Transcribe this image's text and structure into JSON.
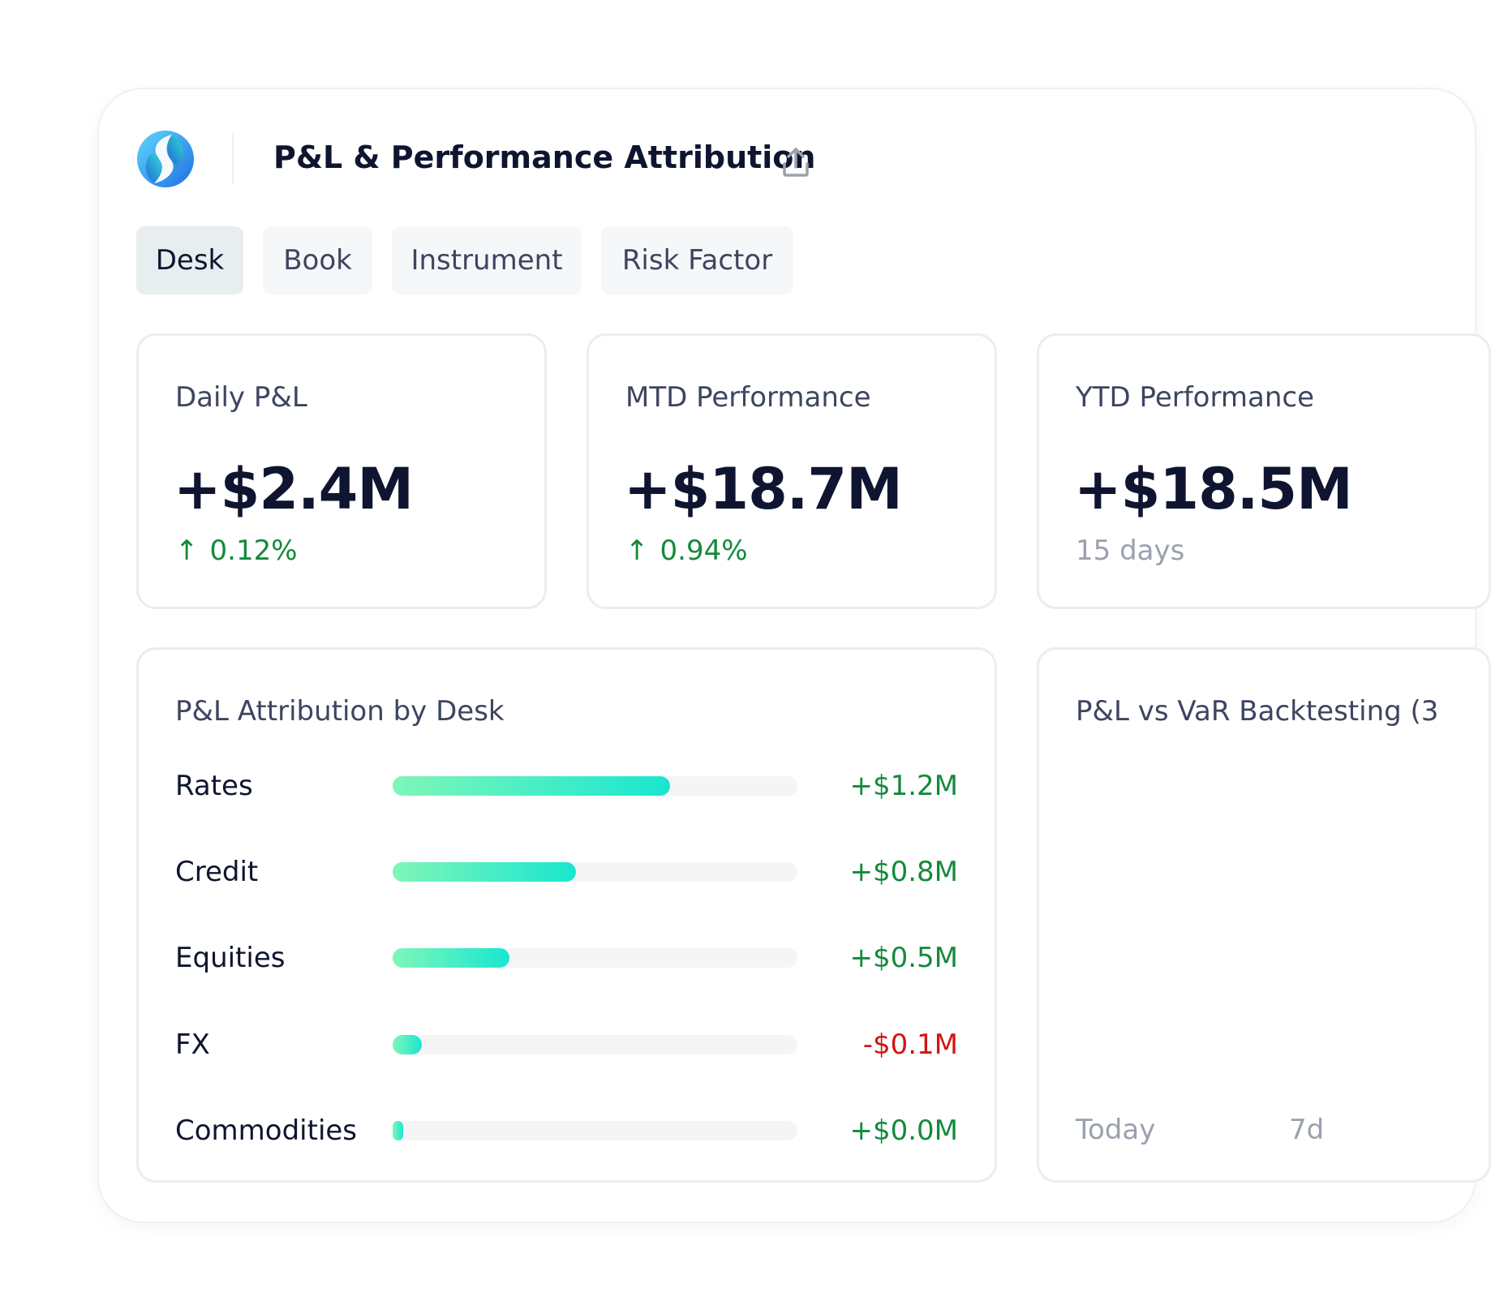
{
  "header": {
    "title": "P&L & Performance Attribution",
    "logo_icon": "logo-icon",
    "share_icon": "share-upload-icon"
  },
  "tabs": [
    {
      "label": "Desk",
      "active": true
    },
    {
      "label": "Book",
      "active": false
    },
    {
      "label": "Instrument",
      "active": false
    },
    {
      "label": "Risk Factor",
      "active": false
    }
  ],
  "kpis": [
    {
      "label": "Daily P&L",
      "value": "+$2.4M",
      "change": "0.12%",
      "direction": "up"
    },
    {
      "label": "MTD Performance",
      "value": "+$18.7M",
      "change": "0.94%",
      "direction": "up"
    },
    {
      "label": "YTD Performance",
      "value": "+$18.5M",
      "subtext": "15 days"
    }
  ],
  "attribution": {
    "title": "P&L Attribution by Desk",
    "rows": [
      {
        "desk": "Rates",
        "value": "+$1.2M",
        "fill_fraction": 0.686
      },
      {
        "desk": "Credit",
        "value": "+$0.8M",
        "fill_fraction": 0.452
      },
      {
        "desk": "Equities",
        "value": "+$0.5M",
        "fill_fraction": 0.289
      },
      {
        "desk": "FX",
        "value": "-$0.1M",
        "fill_fraction": 0.073
      },
      {
        "desk": "Commodities",
        "value": "+$0.0M",
        "fill_fraction": 0.026
      }
    ]
  },
  "backtesting": {
    "title": "P&L vs VaR Backtesting (3",
    "axis_labels": [
      "Today",
      "7d"
    ]
  },
  "colors": {
    "positive": "#138a3c",
    "negative": "#d11414",
    "bar_start": "#7ff6b8",
    "bar_end": "#19e6d0",
    "title": "#0f1530"
  }
}
